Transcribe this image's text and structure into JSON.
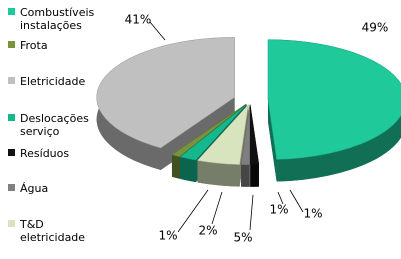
{
  "chart_data": {
    "type": "pie",
    "categories": [
      "Combustíveis instalações",
      "Frota",
      "Eletricidade",
      "Deslocações serviço",
      "Resíduos",
      "Água",
      "T&D eletricidade"
    ],
    "values": [
      49,
      1,
      41,
      2,
      1,
      1,
      5
    ],
    "value_labels": [
      "49%",
      "1%",
      "41%",
      "2%",
      "1%",
      "1%",
      "5%"
    ],
    "colors": [
      "#1fc99a",
      "#77933c",
      "#c0c0c0",
      "#14b88e",
      "#111111",
      "#7f7f7f",
      "#d7e4bd"
    ]
  }
}
